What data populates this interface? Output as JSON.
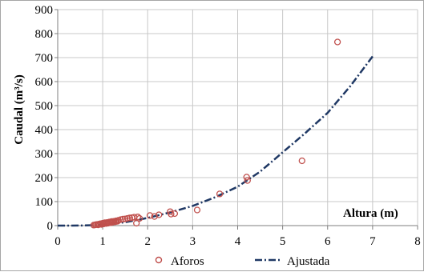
{
  "chart_data": {
    "type": "scatter",
    "xlabel": "Altura (m)",
    "ylabel": "Caudal (m³/s)",
    "xlim": [
      0,
      8
    ],
    "ylim": [
      0,
      900
    ],
    "xticks": [
      0,
      1,
      2,
      3,
      4,
      5,
      6,
      7,
      8
    ],
    "yticks": [
      0,
      100,
      200,
      300,
      400,
      500,
      600,
      700,
      800,
      900
    ],
    "grid": true,
    "legend_position": "bottom",
    "series": [
      {
        "name": "Aforos",
        "kind": "markers",
        "color": "#c0504d",
        "x": [
          0.8,
          0.83,
          0.85,
          0.88,
          0.9,
          0.92,
          0.95,
          0.97,
          1.0,
          1.02,
          1.05,
          1.08,
          1.1,
          1.12,
          1.15,
          1.18,
          1.2,
          1.22,
          1.25,
          1.28,
          1.3,
          1.33,
          1.35,
          1.4,
          1.45,
          1.5,
          1.55,
          1.6,
          1.65,
          1.7,
          1.75,
          1.78,
          1.82,
          2.05,
          2.15,
          2.25,
          2.5,
          2.52,
          2.6,
          3.1,
          3.6,
          4.2,
          4.22,
          5.43,
          6.22
        ],
        "y": [
          2,
          3,
          4,
          5,
          3,
          6,
          8,
          5,
          10,
          7,
          12,
          9,
          13,
          10,
          15,
          12,
          17,
          14,
          18,
          16,
          20,
          18,
          22,
          25,
          27,
          28,
          30,
          32,
          33,
          35,
          10,
          36,
          30,
          42,
          38,
          45,
          58,
          48,
          50,
          65,
          132,
          202,
          188,
          270,
          765
        ]
      },
      {
        "name": "Ajustada",
        "kind": "curve",
        "color": "#1f3864",
        "x": [
          0,
          0.5,
          0.8,
          1.0,
          1.5,
          2.0,
          2.5,
          3.0,
          3.5,
          4.0,
          4.5,
          5.0,
          5.5,
          6.0,
          6.5,
          7.0
        ],
        "y": [
          0,
          0.5,
          2,
          4,
          14,
          32,
          55,
          82,
          118,
          162,
          225,
          305,
          385,
          470,
          580,
          705
        ]
      }
    ]
  }
}
